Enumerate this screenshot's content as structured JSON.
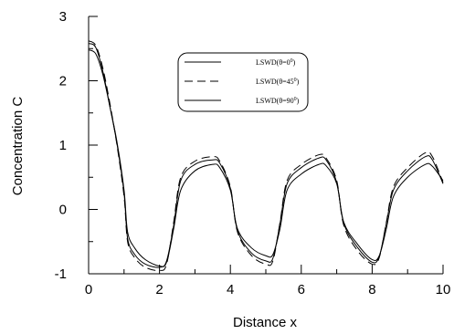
{
  "chart_data": {
    "type": "line",
    "title": "",
    "xlabel": "Distance x",
    "ylabel": "Concentration C",
    "xlim": [
      0,
      10
    ],
    "ylim": [
      -1,
      3
    ],
    "xticks": [
      "0",
      "2",
      "4",
      "6",
      "8",
      "10"
    ],
    "yticks": [
      "-1",
      "0",
      "1",
      "2",
      "3"
    ],
    "grid": false,
    "legend_position": "top-right",
    "series": [
      {
        "name": "LSWD(θ=0",
        "name_sup": "0",
        "name_tail": ")",
        "style": "solid",
        "x": [
          0,
          0.2,
          0.4,
          0.6,
          0.8,
          1.0,
          1.1,
          1.3,
          1.6,
          2.0,
          2.2,
          2.4,
          2.6,
          3.0,
          3.5,
          3.7,
          4.0,
          4.2,
          4.6,
          5.0,
          5.2,
          5.4,
          5.6,
          6.0,
          6.5,
          6.7,
          7.0,
          7.2,
          7.6,
          8.0,
          8.2,
          8.4,
          8.6,
          9.0,
          9.5,
          9.7,
          10.0
        ],
        "y": [
          2.48,
          2.42,
          2.1,
          1.6,
          1.05,
          0.3,
          -0.35,
          -0.6,
          -0.78,
          -0.88,
          -0.82,
          -0.3,
          0.3,
          0.6,
          0.7,
          0.65,
          0.3,
          -0.3,
          -0.6,
          -0.72,
          -0.7,
          -0.3,
          0.3,
          0.55,
          0.7,
          0.68,
          0.4,
          -0.2,
          -0.55,
          -0.78,
          -0.72,
          -0.3,
          0.2,
          0.5,
          0.7,
          0.67,
          0.45
        ]
      },
      {
        "name": "LSWD(θ=45",
        "name_sup": "0",
        "name_tail": ")",
        "style": "dashed",
        "x": [
          0,
          0.2,
          0.4,
          0.6,
          0.8,
          1.0,
          1.1,
          1.3,
          1.6,
          2.0,
          2.2,
          2.4,
          2.6,
          3.0,
          3.5,
          3.7,
          4.0,
          4.2,
          4.6,
          5.0,
          5.2,
          5.4,
          5.6,
          6.0,
          6.5,
          6.7,
          7.0,
          7.2,
          7.6,
          8.0,
          8.2,
          8.4,
          8.6,
          9.0,
          9.5,
          9.7,
          10.0
        ],
        "y": [
          2.62,
          2.55,
          2.2,
          1.65,
          1.0,
          0.2,
          -0.5,
          -0.75,
          -0.9,
          -0.95,
          -0.85,
          -0.2,
          0.5,
          0.75,
          0.82,
          0.75,
          0.35,
          -0.35,
          -0.72,
          -0.85,
          -0.8,
          -0.2,
          0.45,
          0.7,
          0.85,
          0.8,
          0.45,
          -0.25,
          -0.65,
          -0.85,
          -0.75,
          -0.2,
          0.35,
          0.65,
          0.88,
          0.82,
          0.42
        ]
      },
      {
        "name": "LSWD(θ=90",
        "name_sup": "0",
        "name_tail": ")",
        "style": "solid",
        "x": [
          0,
          0.2,
          0.4,
          0.6,
          0.8,
          1.0,
          1.1,
          1.3,
          1.6,
          2.0,
          2.2,
          2.4,
          2.6,
          3.0,
          3.5,
          3.7,
          4.0,
          4.2,
          4.6,
          5.0,
          5.2,
          5.4,
          5.6,
          6.0,
          6.5,
          6.7,
          7.0,
          7.2,
          7.6,
          8.0,
          8.2,
          8.4,
          8.6,
          9.0,
          9.5,
          9.7,
          10.0
        ],
        "y": [
          2.58,
          2.52,
          2.15,
          1.6,
          1.02,
          0.25,
          -0.45,
          -0.7,
          -0.85,
          -0.9,
          -0.8,
          -0.25,
          0.45,
          0.7,
          0.77,
          0.72,
          0.33,
          -0.33,
          -0.68,
          -0.8,
          -0.76,
          -0.22,
          0.4,
          0.65,
          0.8,
          0.77,
          0.42,
          -0.22,
          -0.6,
          -0.82,
          -0.73,
          -0.22,
          0.3,
          0.6,
          0.82,
          0.77,
          0.4
        ]
      }
    ]
  }
}
